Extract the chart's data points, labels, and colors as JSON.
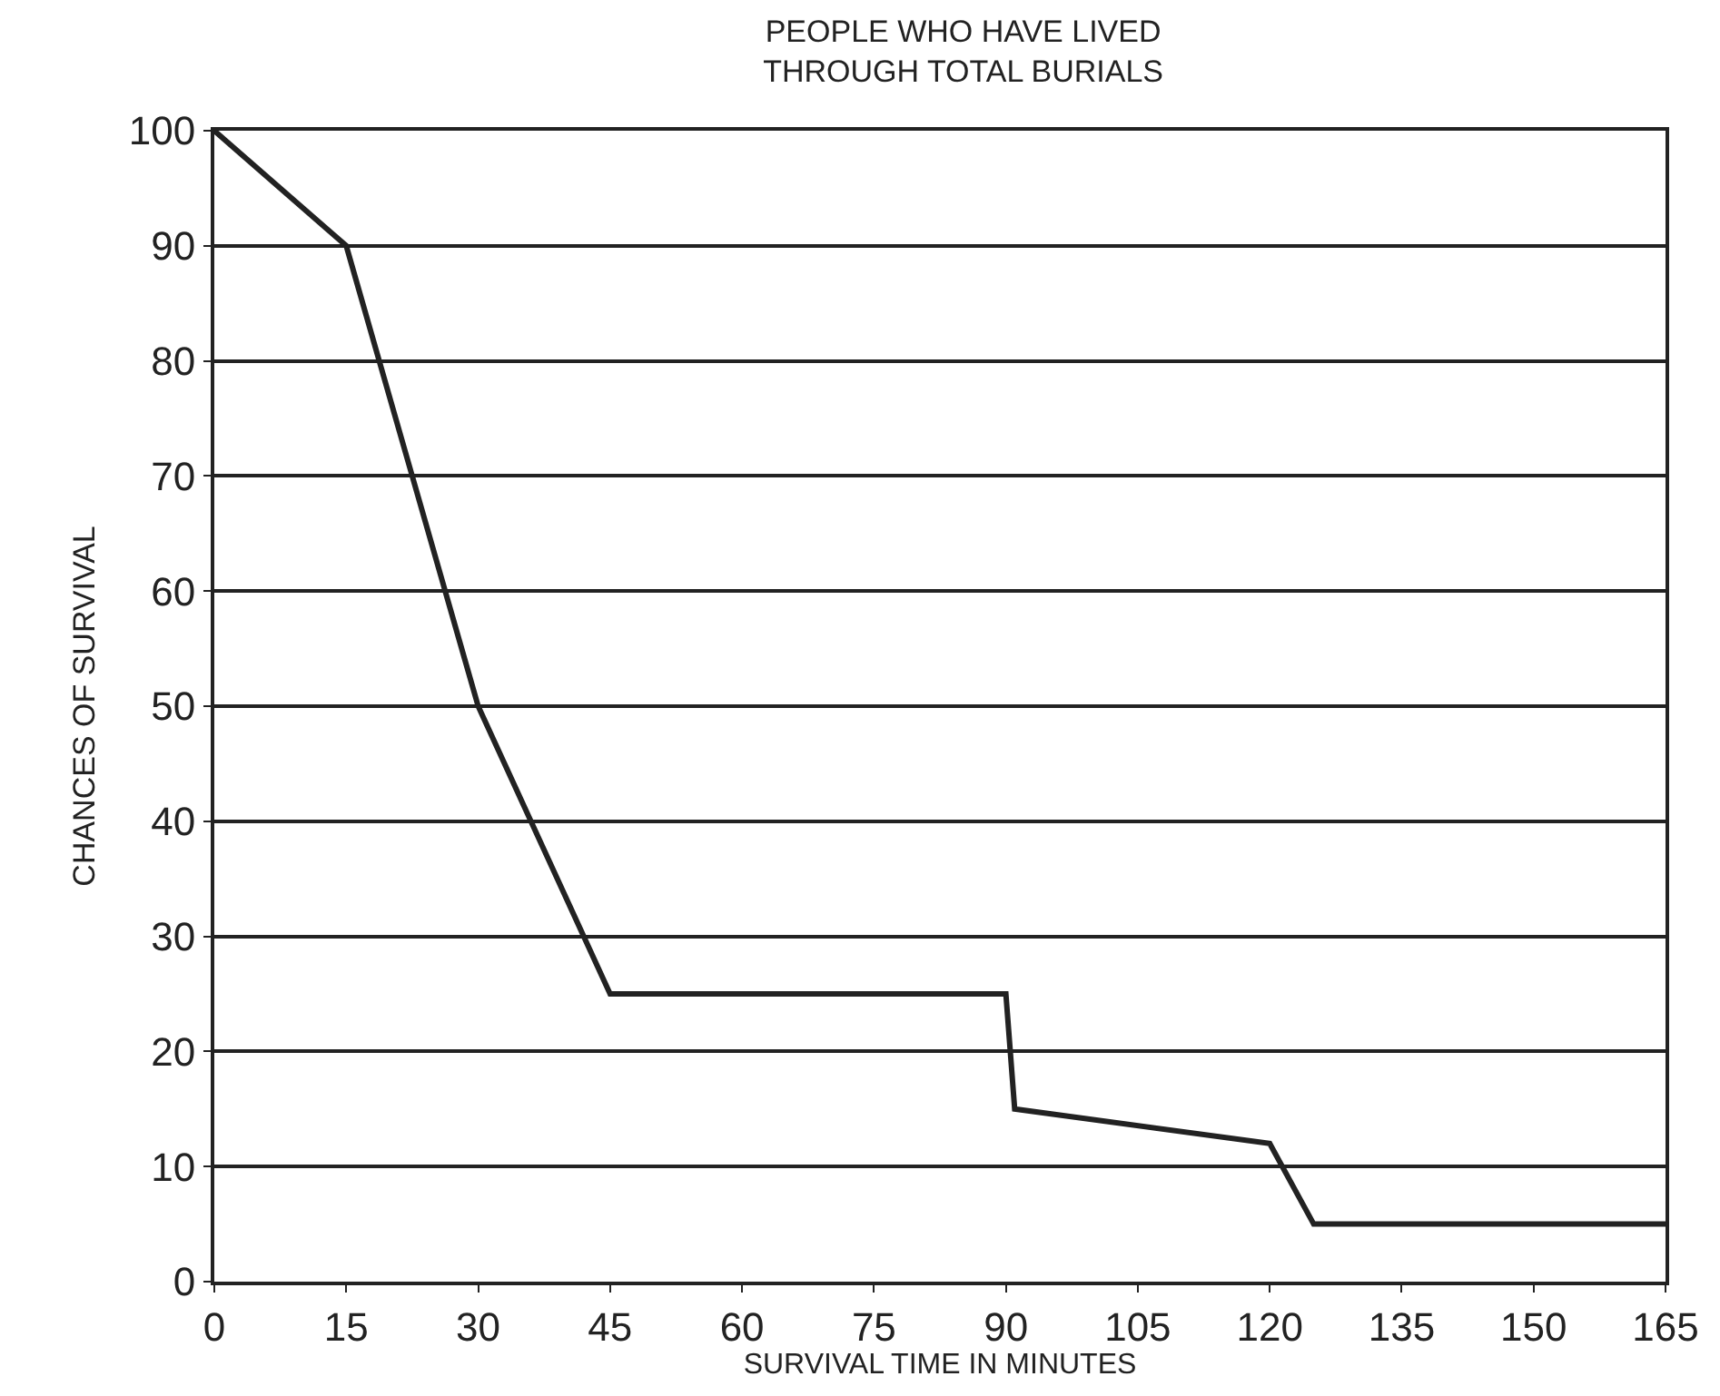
{
  "chart_data": {
    "type": "line",
    "title": "PEOPLE WHO HAVE LIVED\nTHROUGH TOTAL BURIALS",
    "xlabel": "SURVIVAL TIME IN MINUTES",
    "ylabel": "CHANCES OF SURVIVAL",
    "x": [
      0,
      15,
      30,
      45,
      90,
      91,
      120,
      125,
      165
    ],
    "series": [
      {
        "color": "#222222",
        "values": [
          100,
          90,
          50,
          25,
          25,
          15,
          12,
          5,
          5
        ]
      }
    ],
    "xlim": [
      0,
      165
    ],
    "xticks": [
      0,
      15,
      30,
      45,
      60,
      75,
      90,
      105,
      120,
      135,
      150,
      165
    ],
    "ylim": [
      0,
      100
    ],
    "yticks": [
      0,
      10,
      20,
      30,
      40,
      50,
      60,
      70,
      80,
      90,
      100
    ],
    "grid": "y",
    "marker": "none",
    "line_style": "solid"
  }
}
